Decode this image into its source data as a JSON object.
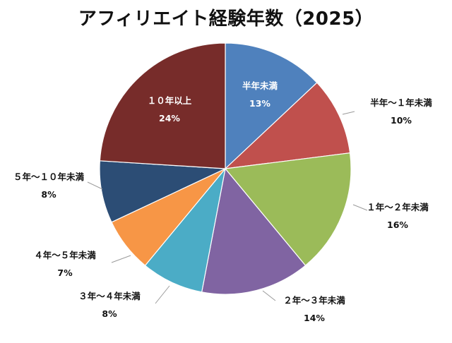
{
  "chart_data": {
    "type": "pie",
    "title": "アフィリエイト経験年数（2025）",
    "categories": [
      "半年未満",
      "半年～１年未満",
      "１年～２年未満",
      "２年～３年未満",
      "３年～４年未満",
      "４年～５年未満",
      "５年～１０年未満",
      "１０年以上"
    ],
    "values": [
      13,
      10,
      16,
      14,
      8,
      7,
      8,
      24
    ],
    "value_labels": [
      "13%",
      "10%",
      "16%",
      "14%",
      "8%",
      "7%",
      "8%",
      "24%"
    ],
    "colors": [
      "#4f81bd",
      "#c0504d",
      "#9bbb59",
      "#8064a2",
      "#4bacc6",
      "#f79646",
      "#2c4d75",
      "#772c2a"
    ],
    "start_angle_deg": 0,
    "direction": "clockwise"
  }
}
